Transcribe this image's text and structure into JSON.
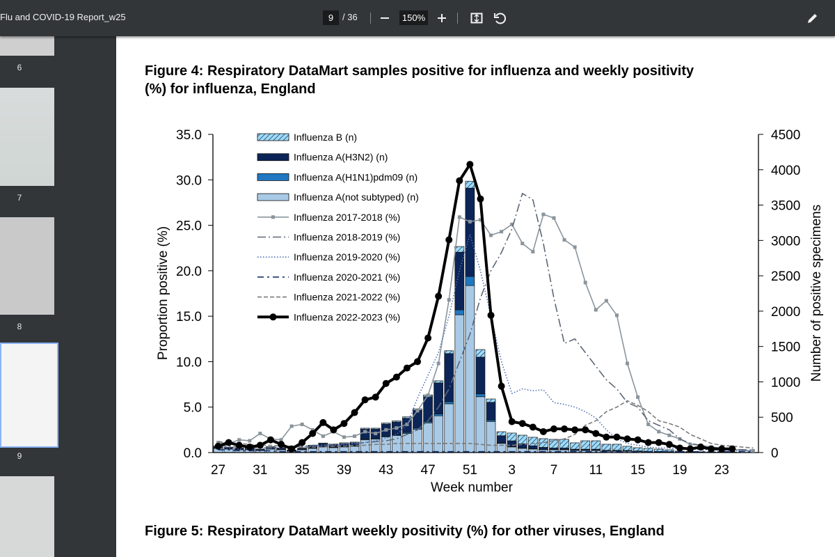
{
  "toolbar": {
    "title": "Flu and COVID-19 Report_w25",
    "page": "9",
    "page_total": "/ 36",
    "zoom": "150%"
  },
  "sidebar": {
    "thumbnails": [
      "6",
      "7",
      "8",
      "9"
    ]
  },
  "document": {
    "figure4_title": "Figure 4: Respiratory DataMart samples positive for influenza and weekly positivity (%) for influenza, England",
    "figure5_title": "Figure 5: Respiratory DataMart weekly positivity (%) for other viruses, England"
  },
  "chart_data": {
    "type": "combo",
    "xlabel": "Week number",
    "ylabel": "Proportion positive (%)",
    "y2label": "Number of positive specimens",
    "categories": [
      "27",
      null,
      null,
      null,
      "31",
      null,
      null,
      null,
      "35",
      null,
      null,
      null,
      "39",
      null,
      null,
      null,
      "43",
      null,
      null,
      null,
      "47",
      null,
      null,
      null,
      "51",
      null,
      null,
      null,
      "3",
      null,
      null,
      null,
      "7",
      null,
      null,
      null,
      "11",
      null,
      null,
      null,
      "15",
      null,
      null,
      null,
      "19",
      null,
      null,
      null,
      "23",
      null,
      null,
      null
    ],
    "ylim": [
      0,
      35
    ],
    "yticks": [
      {
        "value": 0,
        "label": "0.0"
      },
      {
        "value": 5,
        "label": "5.0"
      },
      {
        "value": 10,
        "label": "10.0"
      },
      {
        "value": 15,
        "label": "15.0"
      },
      {
        "value": 20,
        "label": "20.0"
      },
      {
        "value": 25,
        "label": "25.0"
      },
      {
        "value": 30,
        "label": "30.0"
      },
      {
        "value": 35,
        "label": "35.0"
      }
    ],
    "y2lim": [
      0,
      4500
    ],
    "y2ticks": [
      0,
      500,
      1000,
      1500,
      2000,
      2500,
      3000,
      3500,
      4000,
      4500
    ],
    "legend": "upper left",
    "series": [
      {
        "name": "Influenza B (n)",
        "type": "bar",
        "axis": "y2",
        "color": "#9fdcf5",
        "pattern": "hatch",
        "values": [
          10,
          10,
          8,
          8,
          5,
          10,
          8,
          5,
          5,
          10,
          10,
          10,
          12,
          12,
          15,
          15,
          15,
          15,
          20,
          20,
          25,
          30,
          40,
          80,
          98,
          107,
          48,
          57,
          110,
          121,
          122,
          123,
          123,
          123,
          90,
          119,
          119,
          86,
          86,
          59,
          46,
          41,
          33,
          26,
          10,
          7,
          5,
          5,
          4,
          2,
          2,
          1
        ]
      },
      {
        "name": "Influenza A(H3N2) (n)",
        "type": "bar",
        "axis": "y2",
        "color": "#0c2558",
        "values": [
          20,
          15,
          15,
          15,
          10,
          20,
          15,
          10,
          15,
          30,
          40,
          35,
          40,
          40,
          140,
          130,
          170,
          180,
          200,
          250,
          350,
          440,
          680,
          815,
          1250,
          520,
          250,
          100,
          80,
          60,
          40,
          30,
          20,
          20,
          15,
          15,
          15,
          10,
          10,
          8,
          6,
          5,
          5,
          4,
          3,
          2,
          2,
          1,
          1,
          1,
          0,
          0
        ]
      },
      {
        "name": "Influenza A(H1N1)pdm09 (n)",
        "type": "bar",
        "axis": "y2",
        "color": "#1f78c1",
        "values": [
          2,
          2,
          2,
          2,
          2,
          3,
          2,
          2,
          3,
          4,
          5,
          5,
          6,
          6,
          10,
          10,
          12,
          12,
          15,
          18,
          20,
          25,
          30,
          70,
          128,
          40,
          20,
          8,
          6,
          5,
          5,
          4,
          4,
          4,
          3,
          3,
          3,
          2,
          2,
          2,
          2,
          1,
          1,
          1,
          1,
          1,
          0,
          0,
          0,
          0,
          0,
          0
        ]
      },
      {
        "name": "Influenza A(not subtyped) (n)",
        "type": "bar",
        "axis": "y2",
        "color": "#a9cae6",
        "values": [
          60,
          50,
          40,
          40,
          30,
          50,
          40,
          20,
          40,
          60,
          80,
          70,
          80,
          90,
          180,
          190,
          220,
          240,
          270,
          330,
          420,
          520,
          690,
          1949,
          2362,
          790,
          440,
          130,
          80,
          60,
          50,
          40,
          40,
          40,
          30,
          30,
          30,
          20,
          20,
          20,
          15,
          12,
          10,
          8,
          6,
          5,
          4,
          3,
          3,
          2,
          1,
          1
        ]
      },
      {
        "name": "Influenza 2017-2018 (%)",
        "type": "line",
        "color": "#8a949b",
        "marker": "square",
        "linestyle": "solid",
        "values": [
          1.1,
          1.0,
          1.4,
          1.3,
          2.1,
          1.5,
          1.4,
          2.9,
          3.1,
          2.5,
          1.8,
          2.3,
          1.7,
          1.8,
          2.3,
          2.1,
          2.5,
          2.7,
          3.1,
          4.6,
          6.3,
          9.8,
          16.8,
          25.9,
          25.4,
          25.6,
          23.9,
          24.3,
          25.1,
          23.0,
          22.1,
          26.2,
          25.8,
          23.4,
          22.6,
          18.7,
          15.7,
          16.7,
          15.1,
          9.8,
          6.1,
          3.1,
          2.3,
          1.9,
          1.5,
          0.9,
          0.8,
          0.6,
          0.5,
          0.4,
          0.2,
          0.2
        ]
      },
      {
        "name": "Influenza 2018-2019 (%)",
        "type": "line",
        "color": "#5d6675",
        "linestyle": "dashdot",
        "values": [
          0.8,
          0.7,
          0.6,
          0.6,
          0.5,
          0.5,
          0.6,
          0.6,
          0.7,
          0.8,
          0.8,
          0.9,
          1.0,
          1.0,
          1.1,
          1.2,
          1.3,
          1.5,
          2.0,
          2.5,
          3.5,
          5.0,
          7.0,
          10.0,
          13.0,
          17.0,
          20.0,
          22.0,
          24.6,
          28.5,
          27.8,
          23.0,
          17.0,
          12.0,
          12.5,
          11.0,
          9.5,
          8.0,
          7.0,
          5.5,
          5.0,
          3.5,
          3.0,
          2.5,
          1.5,
          1.0,
          0.8,
          0.6,
          0.5,
          0.4,
          0.3,
          0.3
        ]
      },
      {
        "name": "Influenza 2019-2020 (%)",
        "type": "line",
        "color": "#4a6fb8",
        "linestyle": "dotted",
        "values": [
          0.5,
          0.5,
          0.4,
          0.4,
          0.4,
          0.5,
          0.5,
          0.6,
          0.6,
          0.7,
          0.8,
          0.8,
          0.9,
          1.0,
          1.1,
          1.3,
          1.6,
          2.0,
          3.0,
          6.0,
          8.5,
          11.0,
          15.0,
          20.0,
          24.0,
          20.0,
          15.0,
          10.0,
          6.5,
          7.0,
          6.8,
          6.9,
          5.5,
          5.3,
          5.0,
          4.5,
          3.8,
          2.5,
          1.5,
          1.0,
          0.8,
          0.6,
          0.5,
          0.5,
          0.4,
          0.4,
          0.3,
          0.3,
          0.3,
          0.2,
          0.2,
          0.2
        ]
      },
      {
        "name": "Influenza 2020-2021 (%)",
        "type": "line",
        "color": "#12306e",
        "linestyle": "longdashdot",
        "values": [
          0.3,
          0.3,
          0.2,
          0.2,
          0.2,
          0.2,
          0.1,
          0.1,
          0.1,
          0.1,
          0.1,
          0.1,
          0.1,
          0.1,
          0.1,
          0.1,
          0.1,
          0.1,
          0.1,
          0.1,
          0.1,
          0.1,
          0.1,
          0.1,
          0.1,
          0.1,
          0.1,
          0.1,
          0.1,
          0.1,
          0.1,
          0.1,
          0.1,
          0.1,
          0.1,
          0.1,
          0.1,
          0.1,
          0.1,
          0.1,
          0.1,
          0.1,
          0.1,
          0.1,
          0.1,
          0.1,
          0.1,
          0.1,
          0.1,
          0.1,
          0.1,
          0.1
        ]
      },
      {
        "name": "Influenza 2021-2022 (%)",
        "type": "line",
        "color": "#7a7a7a",
        "linestyle": "dashed",
        "values": [
          1.2,
          1.1,
          1.0,
          0.9,
          0.8,
          0.8,
          0.7,
          0.7,
          0.6,
          0.6,
          0.6,
          0.7,
          0.7,
          0.8,
          0.8,
          0.9,
          0.9,
          1.0,
          1.0,
          1.0,
          1.0,
          1.0,
          1.0,
          1.0,
          1.0,
          0.9,
          0.8,
          0.8,
          0.8,
          0.9,
          1.0,
          1.1,
          1.3,
          1.5,
          2.0,
          3.0,
          3.5,
          4.5,
          5.0,
          5.7,
          5.2,
          4.5,
          3.5,
          3.2,
          2.8,
          2.0,
          1.5,
          1.0,
          0.8,
          0.7,
          0.6,
          0.5
        ]
      },
      {
        "name": "Influenza 2022-2023 (%)",
        "type": "line",
        "color": "#000000",
        "marker": "circle",
        "linestyle": "solid",
        "linewidth": 4,
        "values": [
          0.7,
          1.1,
          0.8,
          0.6,
          0.8,
          1.4,
          0.9,
          0.4,
          1.1,
          2.1,
          3.3,
          2.5,
          3.2,
          4.4,
          5.8,
          6.1,
          7.6,
          8.3,
          9.3,
          10.0,
          12.6,
          17.2,
          23.4,
          29.9,
          31.7,
          27.9,
          15.1,
          7.3,
          3.4,
          3.2,
          2.8,
          2.3,
          2.6,
          2.6,
          2.5,
          2.5,
          2.1,
          1.7,
          1.7,
          1.5,
          1.4,
          1.1,
          1.1,
          0.9,
          0.5,
          0.4,
          0.6,
          0.4,
          0.4,
          0.4,
          null,
          null
        ]
      }
    ]
  }
}
